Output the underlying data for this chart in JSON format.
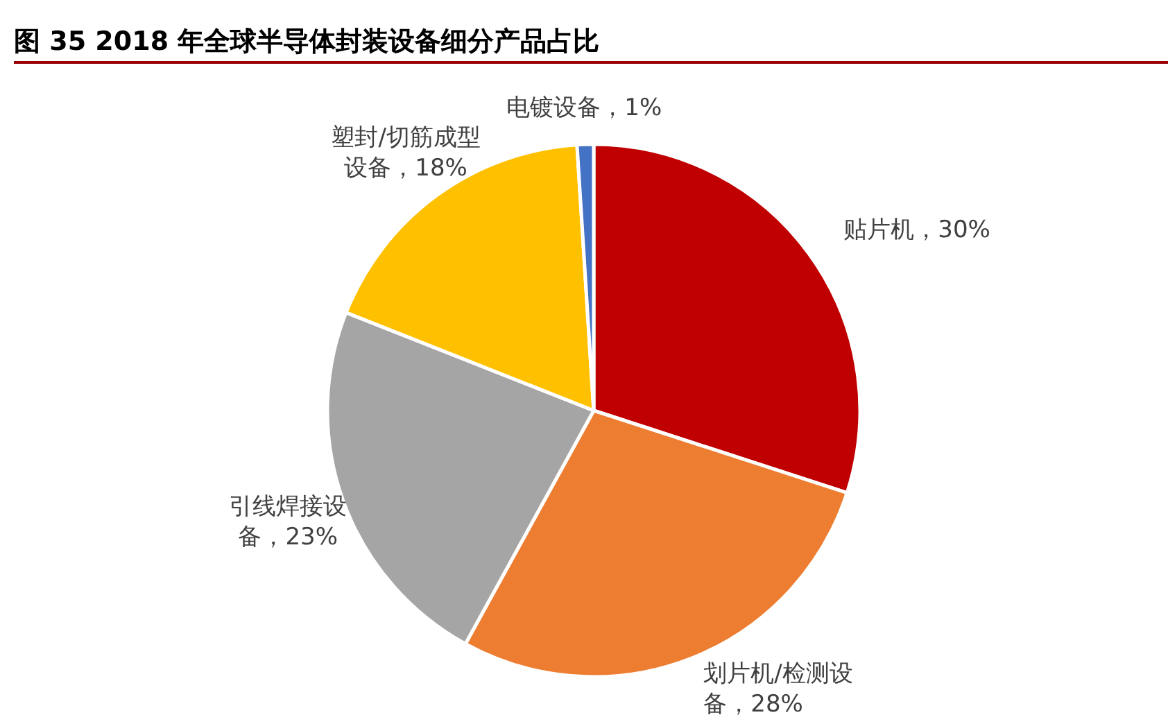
{
  "chart_data": {
    "type": "pie",
    "title": "图 35 2018 年全球半导体封装设备细分产品占比",
    "categories": [
      "贴片机",
      "划片机/检测设备",
      "引线焊接设备",
      "塑封/切筋成型设备",
      "电镀设备"
    ],
    "values": [
      30,
      28,
      23,
      18,
      1
    ],
    "colors": [
      "#c00000",
      "#ed7d31",
      "#a5a5a5",
      "#ffc000",
      "#4472c4"
    ],
    "value_labels": [
      "30%",
      "28%",
      "23%",
      "18%",
      "1%"
    ]
  }
}
